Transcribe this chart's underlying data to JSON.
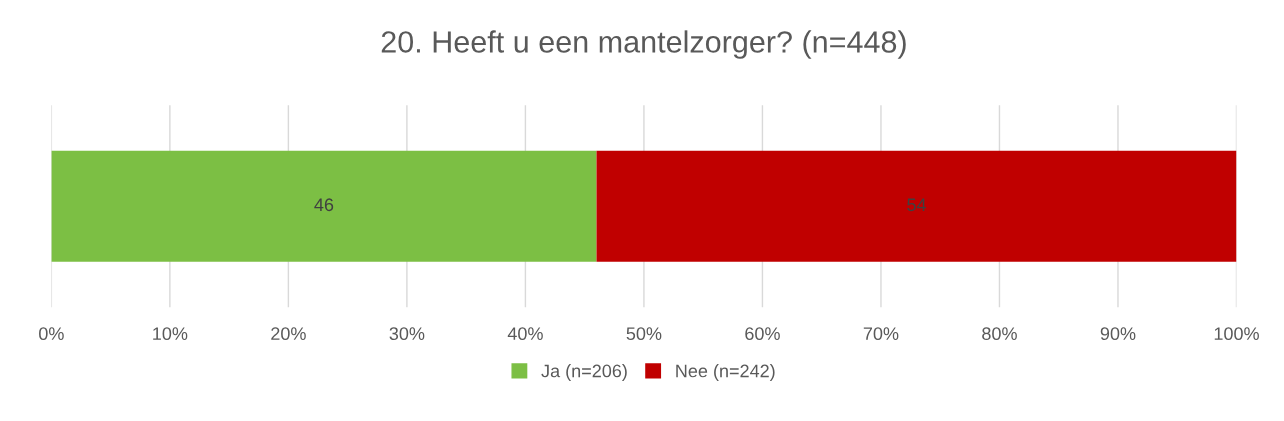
{
  "chart_data": {
    "type": "bar",
    "title": "20. Heeft u een mantelzorger? (n=448)",
    "orientation": "horizontal",
    "stacked": true,
    "categories": [
      null
    ],
    "series": [
      {
        "name": "Ja (n=206)",
        "color": "#7cbf44",
        "values": [
          46
        ]
      },
      {
        "name": "Nee (n=242)",
        "color": "#c00000",
        "values": [
          54
        ]
      }
    ],
    "xlim": [
      0,
      100
    ],
    "xticks": [
      {
        "value": 0,
        "label": "0%"
      },
      {
        "value": 10,
        "label": "10%"
      },
      {
        "value": 20,
        "label": "20%"
      },
      {
        "value": 30,
        "label": "30%"
      },
      {
        "value": 40,
        "label": "40%"
      },
      {
        "value": 50,
        "label": "50%"
      },
      {
        "value": 60,
        "label": "60%"
      },
      {
        "value": 70,
        "label": "70%"
      },
      {
        "value": 80,
        "label": "80%"
      },
      {
        "value": 90,
        "label": "90%"
      },
      {
        "value": 100,
        "label": "100%"
      }
    ],
    "data_labels": true,
    "grid": "x",
    "legend": "bottom"
  }
}
